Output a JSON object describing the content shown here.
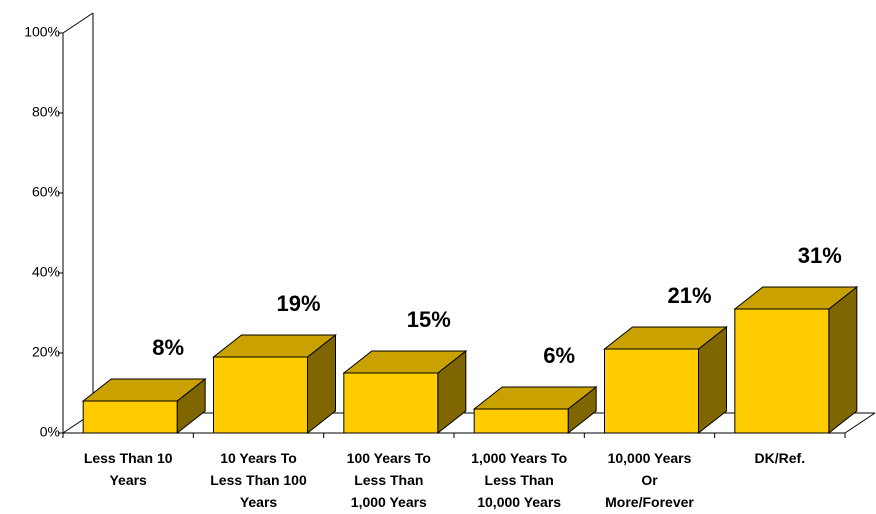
{
  "chart_data": {
    "type": "bar3d",
    "categories": [
      [
        "Less Than 10",
        "Years"
      ],
      [
        "10 Years To",
        "Less Than 100",
        "Years"
      ],
      [
        "100 Years To",
        "Less Than",
        "1,000 Years"
      ],
      [
        "1,000 Years To",
        "Less Than",
        "10,000 Years"
      ],
      [
        "10,000 Years",
        "Or",
        "More/Forever"
      ],
      [
        "DK/Ref."
      ]
    ],
    "values": [
      8,
      19,
      15,
      6,
      21,
      31
    ],
    "value_labels": [
      "8%",
      "19%",
      "15%",
      "6%",
      "21%",
      "31%"
    ],
    "color": "#ffcc00",
    "ylim": [
      0,
      100
    ],
    "yticks": [
      {
        "value": 0,
        "label": "0%"
      },
      {
        "value": 20,
        "label": "20%"
      },
      {
        "value": 40,
        "label": "40%"
      },
      {
        "value": 60,
        "label": "60%"
      },
      {
        "value": 80,
        "label": "80%"
      },
      {
        "value": 100,
        "label": "100%"
      }
    ],
    "grid": false
  }
}
